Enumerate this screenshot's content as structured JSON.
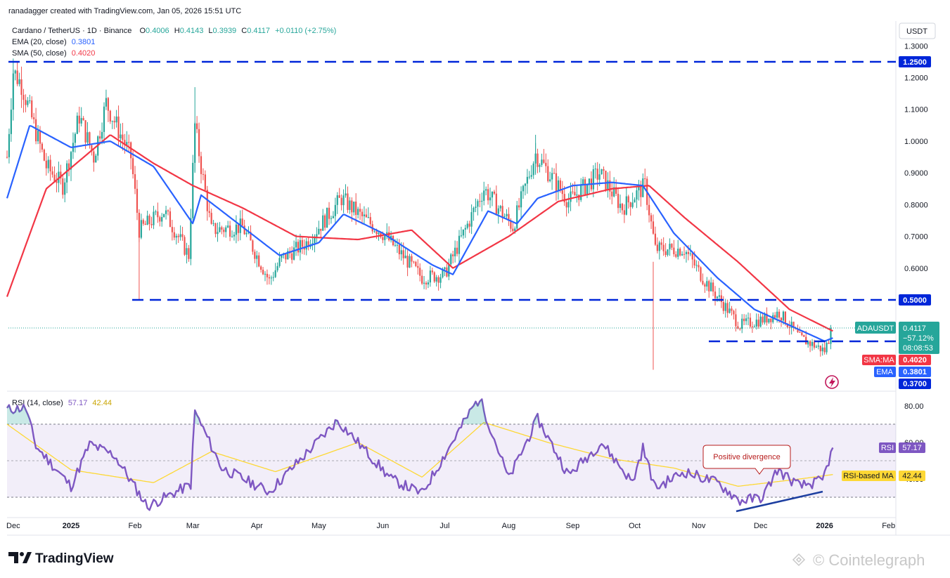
{
  "header": {
    "created_by": "ranadagger created with TradingView.com, Jan 05, 2026 15:51 UTC",
    "symbol_line": "Cardano / TetherUS · 1D · Binance",
    "open_label": "O",
    "open": "0.4006",
    "high_label": "H",
    "high": "0.4143",
    "low_label": "L",
    "low": "0.3939",
    "close_label": "C",
    "close": "0.4117",
    "change": "+0.0110 (+2.75%)",
    "ema_label": "EMA (20, close)",
    "ema_value": "0.3801",
    "sma_label": "SMA (50, close)",
    "sma_value": "0.4020"
  },
  "price_axis": {
    "currency": "USDT",
    "ticks": [
      "1.3000",
      "1.2000",
      "1.1000",
      "1.0000",
      "0.9000",
      "0.8000",
      "0.7000",
      "0.6000"
    ]
  },
  "tags": {
    "level_1250": "1.2500",
    "level_0500": "0.5000",
    "level_0370": "0.3700",
    "symbol": "ADAUSDT",
    "last_price": "0.4117",
    "change_pct": "−57.12%",
    "countdown": "08:08:53",
    "sma_tag": "SMA:MA",
    "sma_value": "0.4020",
    "ema_tag": "EMA",
    "ema_value": "0.3801"
  },
  "rsi_panel": {
    "label": "RSI (14, close)",
    "rsi_value": "57.17",
    "ma_value": "42.44",
    "ticks": [
      "80.00",
      "60.00",
      "40.00"
    ],
    "rsi_tag": "RSI",
    "ma_tag": "RSI-based MA",
    "annotation": "Positive divergence"
  },
  "time_axis": [
    "Dec",
    "2025",
    "Feb",
    "Mar",
    "Apr",
    "May",
    "Jun",
    "Jul",
    "Aug",
    "Sep",
    "Oct",
    "Nov",
    "Dec",
    "2026",
    "Feb"
  ],
  "branding": {
    "tradingview": "TradingView",
    "watermark": "Cointelegraph"
  },
  "colors": {
    "up": "#26a69a",
    "down": "#ef5350",
    "ema": "#2962ff",
    "sma": "#f23645",
    "rsi": "#7e57c2",
    "rsi_ma": "#fdd835",
    "level": "#0026d9"
  },
  "chart_data": [
    {
      "type": "candlestick",
      "pair": "ADAUSDT",
      "timeframe": "1D",
      "x_range": [
        "2024-12-01",
        "2026-02-05"
      ],
      "y_range": [
        0.35,
        1.31
      ],
      "horizontal_levels": [
        1.25,
        0.5,
        0.37
      ],
      "last": {
        "open": 0.4006,
        "high": 0.4143,
        "low": 0.3939,
        "close": 0.4117
      },
      "series": [
        {
          "name": "EMA (20, close)",
          "points": [
            [
              "2024-12-01",
              0.82
            ],
            [
              "2024-12-12",
              1.05
            ],
            [
              "2025-01-01",
              0.98
            ],
            [
              "2025-01-20",
              1.0
            ],
            [
              "2025-02-10",
              0.92
            ],
            [
              "2025-03-01",
              0.74
            ],
            [
              "2025-03-05",
              0.83
            ],
            [
              "2025-03-25",
              0.73
            ],
            [
              "2025-04-12",
              0.64
            ],
            [
              "2025-05-01",
              0.68
            ],
            [
              "2025-05-13",
              0.77
            ],
            [
              "2025-06-01",
              0.71
            ],
            [
              "2025-06-25",
              0.61
            ],
            [
              "2025-07-05",
              0.58
            ],
            [
              "2025-07-22",
              0.78
            ],
            [
              "2025-08-05",
              0.74
            ],
            [
              "2025-08-15",
              0.82
            ],
            [
              "2025-09-01",
              0.86
            ],
            [
              "2025-09-20",
              0.87
            ],
            [
              "2025-10-05",
              0.86
            ],
            [
              "2025-10-20",
              0.71
            ],
            [
              "2025-11-10",
              0.57
            ],
            [
              "2025-11-28",
              0.47
            ],
            [
              "2025-12-15",
              0.42
            ],
            [
              "2026-01-01",
              0.37
            ],
            [
              "2026-01-05",
              0.3801
            ]
          ]
        },
        {
          "name": "SMA (50, close)",
          "points": [
            [
              "2024-12-01",
              0.51
            ],
            [
              "2024-12-20",
              0.85
            ],
            [
              "2025-01-20",
              1.02
            ],
            [
              "2025-02-10",
              0.93
            ],
            [
              "2025-03-01",
              0.86
            ],
            [
              "2025-03-25",
              0.79
            ],
            [
              "2025-04-20",
              0.7
            ],
            [
              "2025-05-20",
              0.69
            ],
            [
              "2025-06-15",
              0.72
            ],
            [
              "2025-07-05",
              0.6
            ],
            [
              "2025-08-01",
              0.7
            ],
            [
              "2025-08-25",
              0.81
            ],
            [
              "2025-09-20",
              0.85
            ],
            [
              "2025-10-08",
              0.86
            ],
            [
              "2025-10-25",
              0.76
            ],
            [
              "2025-11-20",
              0.62
            ],
            [
              "2025-12-15",
              0.47
            ],
            [
              "2026-01-05",
              0.402
            ]
          ]
        }
      ]
    },
    {
      "type": "line",
      "title": "RSI (14, close)",
      "y_ticks": [
        40,
        60,
        80
      ],
      "bands": [
        30,
        70
      ],
      "series": [
        {
          "name": "RSI",
          "points": [
            [
              "2024-12-01",
              78
            ],
            [
              "2024-12-10",
              79
            ],
            [
              "2024-12-15",
              58
            ],
            [
              "2025-01-01",
              36
            ],
            [
              "2025-01-10",
              59
            ],
            [
              "2025-01-22",
              53
            ],
            [
              "2025-02-07",
              25
            ],
            [
              "2025-02-28",
              37
            ],
            [
              "2025-03-02",
              77
            ],
            [
              "2025-03-15",
              46
            ],
            [
              "2025-04-07",
              33
            ],
            [
              "2025-04-25",
              54
            ],
            [
              "2025-05-10",
              72
            ],
            [
              "2025-05-20",
              60
            ],
            [
              "2025-06-05",
              40
            ],
            [
              "2025-06-20",
              32
            ],
            [
              "2025-07-15",
              80
            ],
            [
              "2025-07-18",
              84
            ],
            [
              "2025-08-01",
              40
            ],
            [
              "2025-08-15",
              73
            ],
            [
              "2025-08-30",
              42
            ],
            [
              "2025-09-15",
              60
            ],
            [
              "2025-09-30",
              38
            ],
            [
              "2025-10-05",
              57
            ],
            [
              "2025-10-11",
              35
            ],
            [
              "2025-10-25",
              44
            ],
            [
              "2025-11-10",
              38
            ],
            [
              "2025-11-21",
              28
            ],
            [
              "2025-12-02",
              30
            ],
            [
              "2025-12-09",
              45
            ],
            [
              "2025-12-20",
              36
            ],
            [
              "2025-12-31",
              39
            ],
            [
              "2026-01-05",
              57.17
            ]
          ]
        },
        {
          "name": "RSI-based MA",
          "points": [
            [
              "2024-12-01",
              70
            ],
            [
              "2025-01-01",
              45
            ],
            [
              "2025-02-10",
              38
            ],
            [
              "2025-03-10",
              55
            ],
            [
              "2025-04-10",
              44
            ],
            [
              "2025-05-20",
              60
            ],
            [
              "2025-06-20",
              41
            ],
            [
              "2025-07-20",
              71
            ],
            [
              "2025-08-20",
              60
            ],
            [
              "2025-09-20",
              51
            ],
            [
              "2025-10-20",
              46
            ],
            [
              "2025-11-20",
              36
            ],
            [
              "2025-12-20",
              40
            ],
            [
              "2026-01-05",
              42.44
            ]
          ]
        }
      ]
    }
  ]
}
